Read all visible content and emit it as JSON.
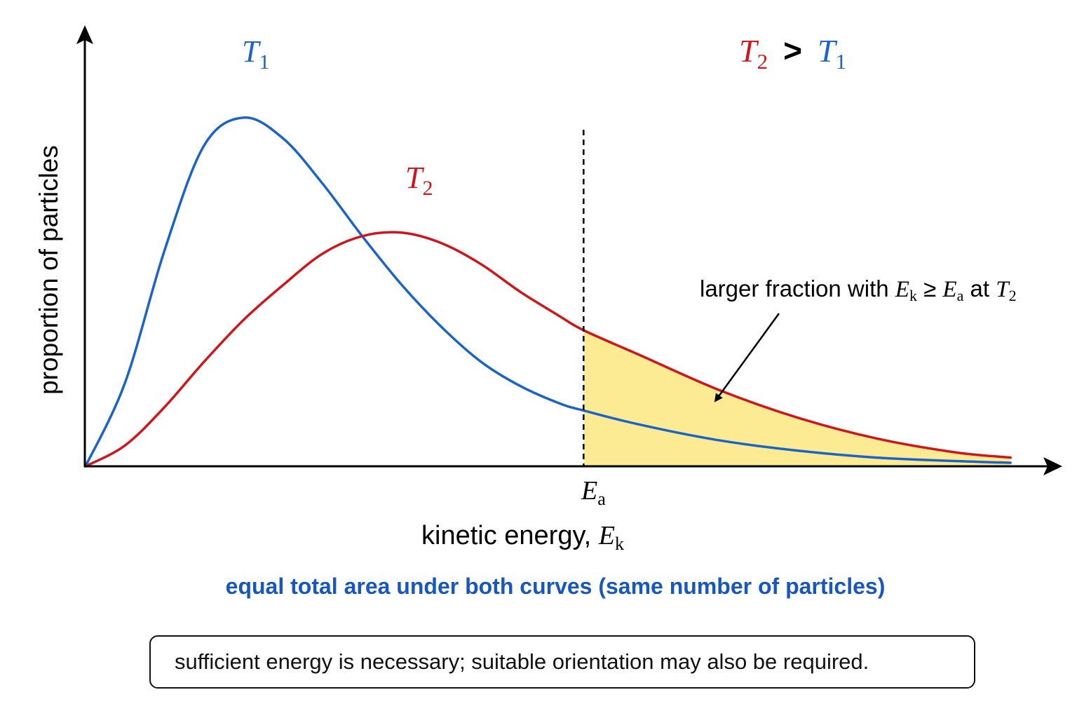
{
  "colors": {
    "t1": "#1a63c7",
    "t2": "#d0161c",
    "fill": "#fdeb94",
    "axis": "#000000",
    "note": "#1858be"
  },
  "chart_data": {
    "type": "line",
    "xlabel": "kinetic energy, ",
    "xlabel_symbol": "E",
    "xlabel_sub": "k",
    "ylabel": "proportion of particles",
    "threshold": {
      "symbol": "E",
      "sub": "a",
      "x": 6.3
    },
    "series": [
      {
        "name": "T",
        "sub": "1",
        "color": "#1a63c7",
        "x": [
          0,
          0.5,
          1.0,
          1.5,
          2.0,
          2.5,
          3.0,
          3.5,
          4.0,
          4.5,
          5.0,
          5.5,
          6.0,
          6.3,
          7.0,
          8.0,
          9.0,
          10.0,
          11.0,
          11.7
        ],
        "y": [
          0,
          2.4,
          6.2,
          9.2,
          10.0,
          9.4,
          8.1,
          6.6,
          5.2,
          4.0,
          3.0,
          2.3,
          1.8,
          1.6,
          1.2,
          0.75,
          0.45,
          0.25,
          0.15,
          0.1
        ]
      },
      {
        "name": "T",
        "sub": "2",
        "color": "#d0161c",
        "x": [
          0,
          0.5,
          1.0,
          1.5,
          2.0,
          2.5,
          3.0,
          3.5,
          4.0,
          4.5,
          5.0,
          5.5,
          6.0,
          6.3,
          7.0,
          8.0,
          9.0,
          10.0,
          11.0,
          11.7
        ],
        "y": [
          0,
          0.6,
          1.7,
          3.0,
          4.2,
          5.2,
          6.1,
          6.6,
          6.7,
          6.4,
          5.8,
          5.0,
          4.3,
          3.9,
          3.2,
          2.2,
          1.4,
          0.8,
          0.4,
          0.25
        ]
      }
    ],
    "xlim": [
      0,
      12
    ],
    "ylim": [
      0,
      11.2
    ],
    "grid": false,
    "comparison": {
      "left": "T",
      "left_sub": "2",
      "op": ">",
      "right": "T",
      "right_sub": "1"
    },
    "annotation": {
      "prefix": "larger fraction with ",
      "e1": "E",
      "e1_sub": "k",
      "op": " ≥ ",
      "e2": "E",
      "e2_sub": "a",
      "mid": " at ",
      "t": "T",
      "t_sub": "2"
    }
  },
  "notes": {
    "area": "equal total area under both curves (same number of particles)",
    "footnote": "sufficient energy is necessary; suitable orientation may also be required."
  }
}
